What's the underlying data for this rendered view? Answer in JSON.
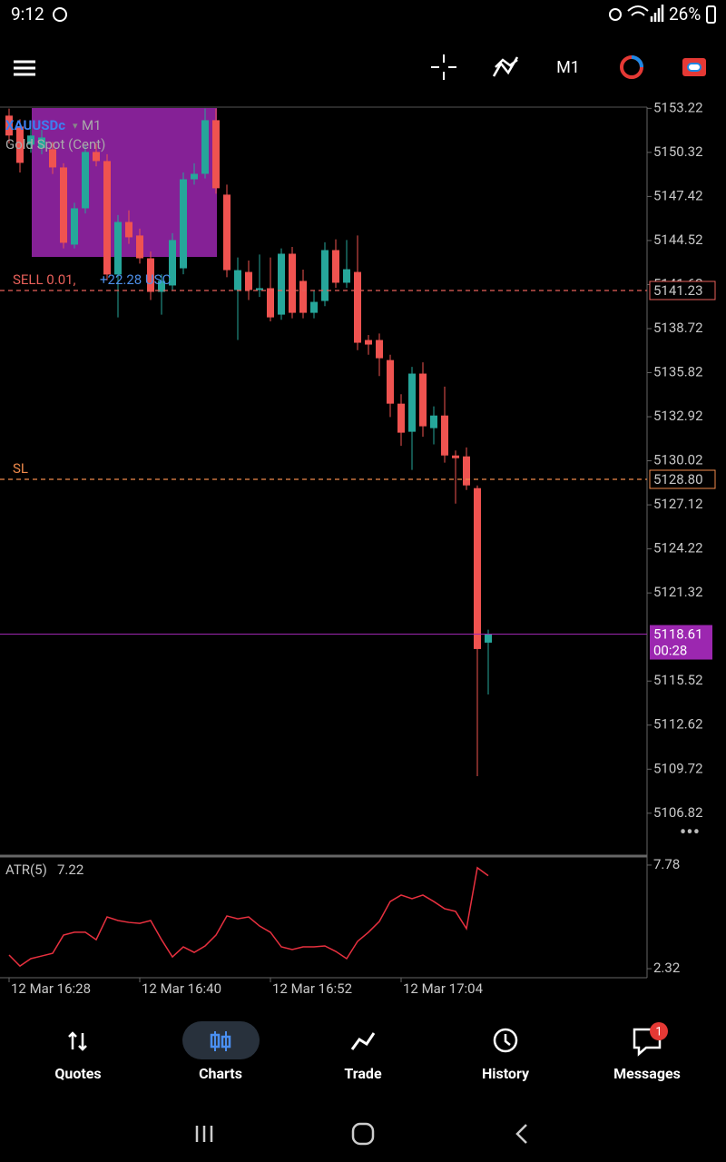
{
  "status_bar": {
    "time": "9:12",
    "battery": "26%"
  },
  "toolbar": {
    "timeframe": "M1"
  },
  "chart_data": {
    "type": "candlestick",
    "symbol": "XAUUSDc",
    "timeframe": "M1",
    "description": "Gold Spot (Cent)",
    "x": [
      "12 Mar 16:28",
      null,
      null,
      null,
      null,
      null,
      null,
      null,
      null,
      null,
      null,
      null,
      "12 Mar 16:40",
      null,
      null,
      null,
      null,
      null,
      null,
      null,
      null,
      null,
      null,
      null,
      "12 Mar 16:52",
      null,
      null,
      null,
      null,
      null,
      null,
      null,
      null,
      null,
      null,
      null,
      "12 Mar 17:04",
      null,
      null,
      null,
      null,
      null,
      null,
      null,
      null
    ],
    "open": [
      5152.74,
      5152.02,
      5150.83,
      5150.6,
      5150.53,
      5149.33,
      5144.25,
      5146.64,
      5150.35,
      5149.75,
      5142.28,
      5145.74,
      5144.85,
      5143.35,
      5141.14,
      5141.56,
      5142.69,
      5148.55,
      5148.91,
      5152.44,
      5147.54,
      5141.26,
      5142.45,
      5141.26,
      5141.38,
      5139.64,
      5143.65,
      5141.86,
      5139.76,
      5140.54,
      5143.89,
      5141.74,
      5142.45,
      5137.97,
      5137.97,
      5136.65,
      5133.78,
      5131.93,
      5135.76,
      5132.17,
      5133.0,
      5130.37,
      5130.31,
      5128.22,
      5118.05
    ],
    "high": [
      5153.2,
      5152.5,
      5152.0,
      5151.8,
      5151.0,
      5149.6,
      5147.0,
      5150.8,
      5150.9,
      5150.2,
      5146.2,
      5146.5,
      5145.3,
      5143.8,
      5142.3,
      5145.0,
      5149.0,
      5149.6,
      5153.2,
      5153.2,
      5148.2,
      5143.4,
      5143.2,
      5143.6,
      5143.4,
      5144.0,
      5144.1,
      5142.6,
      5141.2,
      5144.4,
      5144.6,
      5144.55,
      5144.85,
      5138.3,
      5138.4,
      5137.0,
      5134.4,
      5136.2,
      5136.5,
      5133.6,
      5134.9,
      5130.7,
      5130.9,
      5128.4,
      5118.9
    ],
    "low": [
      5150.9,
      5149.0,
      5150.3,
      5150.2,
      5148.9,
      5144.0,
      5144.0,
      5146.3,
      5149.4,
      5141.9,
      5139.46,
      5144.3,
      5143.0,
      5140.6,
      5139.64,
      5141.2,
      5142.3,
      5148.2,
      5148.6,
      5147.6,
      5142.1,
      5137.97,
      5140.6,
      5140.8,
      5139.2,
      5139.3,
      5139.4,
      5139.4,
      5139.4,
      5140.2,
      5141.4,
      5141.4,
      5137.3,
      5137.0,
      5135.6,
      5132.9,
      5131.0,
      5129.42,
      5131.6,
      5131.1,
      5129.9,
      5127.2,
      5128.1,
      5109.26,
      5114.64
    ],
    "close": [
      5151.43,
      5149.63,
      5151.43,
      5151.3,
      5149.33,
      5144.37,
      5146.64,
      5150.35,
      5149.75,
      5142.28,
      5145.74,
      5144.73,
      5143.35,
      5141.14,
      5141.86,
      5144.55,
      5148.55,
      5148.91,
      5152.44,
      5147.96,
      5142.57,
      5142.57,
      5141.26,
      5141.38,
      5139.46,
      5143.65,
      5139.76,
      5139.76,
      5140.48,
      5143.89,
      5141.74,
      5142.63,
      5137.79,
      5137.67,
      5136.77,
      5133.78,
      5131.87,
      5135.76,
      5132.29,
      5133.0,
      5130.37,
      5130.19,
      5128.4,
      5117.63,
      5118.61
    ],
    "up_color": "#26a69a",
    "down_color": "#ef5350",
    "ylim": [
      5104.18,
      5153.3
    ],
    "yticks": [
      5153.22,
      5150.32,
      5147.42,
      5144.52,
      5141.62,
      5138.72,
      5135.82,
      5132.92,
      5130.02,
      5127.12,
      5124.22,
      5121.32,
      5115.52,
      5112.62,
      5109.72,
      5106.82
    ],
    "orders": [
      {
        "label": "SELL 0.01,",
        "profit": "+22.28 USC",
        "price": 5141.23,
        "color": "#e8605a"
      },
      {
        "label": "SL",
        "price": {
          "value": 5128.8,
          "label": "5128.80"
        },
        "color": "#f08a4b"
      }
    ],
    "current_price": 5118.61,
    "countdown": "00:28",
    "current_color": "#9c27b0",
    "indicator": {
      "type": "line",
      "name": "ATR(5)",
      "color": "#e8303f",
      "values": [
        3.04,
        2.46,
        2.85,
        2.99,
        3.13,
        4.09,
        4.24,
        4.24,
        3.85,
        5.05,
        4.86,
        4.76,
        4.71,
        4.86,
        3.85,
        2.94,
        3.47,
        3.18,
        3.52,
        4.09,
        5.1,
        4.95,
        5.05,
        4.57,
        4.24,
        3.47,
        3.33,
        3.47,
        3.47,
        3.52,
        3.23,
        2.85,
        3.76,
        4.24,
        4.81,
        5.86,
        6.2,
        6.01,
        6.2,
        5.86,
        5.48,
        5.34,
        4.43,
        7.64,
        7.22
      ],
      "ylim": [
        1.94,
        8.16
      ],
      "yticks": [
        7.78,
        2.32
      ]
    }
  },
  "nav": {
    "tabs": [
      "Quotes",
      "Charts",
      "Trade",
      "History",
      "Messages"
    ],
    "active": 1,
    "badge": "1"
  }
}
